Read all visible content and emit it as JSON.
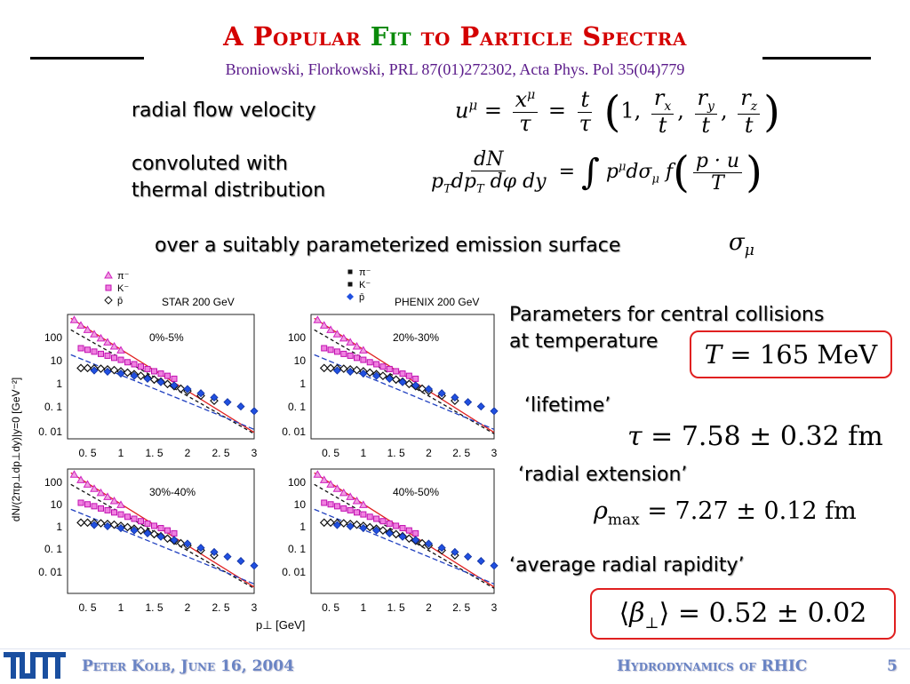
{
  "title": {
    "part1": "A Popular",
    "part2": "Fit",
    "part3": "to Particle Spectra"
  },
  "subtitle": "Broniowski, Florkowski, PRL 87(01)272302, Acta Phys. Pol 35(04)779",
  "labels": {
    "radial_flow": "radial flow velocity",
    "convoluted_line1": "convoluted with",
    "convoluted_line2": "thermal distribution",
    "emission_surface": "over a suitably parameterized emission surface",
    "parameters_line1": "Parameters for central collisions",
    "parameters_line2": "at temperature",
    "lifetime": "‘lifetime’",
    "radial_extension": "‘radial extension’",
    "avg_rapidity": "‘average radial rapidity’"
  },
  "values": {
    "temperature": "165 MeV",
    "tau": "7.58 ± 0.32 fm",
    "rho_max": "7.27 ± 0.12 fm",
    "beta": "0.52 ± 0.02"
  },
  "footer": {
    "logo": "TUM",
    "author_date": "Peter Kolb, June 16, 2004",
    "topic": "Hydrodynamics of RHIC",
    "page": "5"
  },
  "colors": {
    "title": "#d40000",
    "fit": "#0a8a0a",
    "subtitle": "#5a1a8a",
    "footer": "#6a84c4",
    "box": "#e02020"
  },
  "chart_data": {
    "type": "scatter",
    "xlabel": "p⊥ [GeV]",
    "ylabel": "dN/(2πp⊥dp⊥dy)|y=0 [GeV⁻²]",
    "xticks": [
      "0. 5",
      "1",
      "1. 5",
      "2",
      "2. 5",
      "3"
    ],
    "yticks": [
      "100",
      "10",
      "1",
      "0. 1",
      "0. 01"
    ],
    "legend_left": [
      "π⁻",
      "K⁻",
      "p̄"
    ],
    "legend_right": [
      "π⁻",
      "K⁻",
      "p̄"
    ],
    "experiments": [
      "STAR 200 GeV",
      "PHENIX 200 GeV"
    ],
    "panels": [
      {
        "label": "0%-5%"
      },
      {
        "label": "20%-30%"
      },
      {
        "label": "30%-40%"
      },
      {
        "label": "40%-50%"
      }
    ],
    "xlim": [
      0.2,
      3.0
    ],
    "ylim": [
      0.005,
      500
    ],
    "log_y": true,
    "series": [
      {
        "marker": "pink-triangle",
        "x": [
          0.3,
          0.4,
          0.5,
          0.6,
          0.7,
          0.8,
          0.9,
          1.0
        ],
        "y": [
          300,
          180,
          120,
          80,
          55,
          38,
          26,
          18
        ]
      },
      {
        "marker": "magenta-square",
        "x": [
          0.4,
          0.5,
          0.6,
          0.7,
          0.8,
          0.9,
          1.0,
          1.1,
          1.2,
          1.3,
          1.4,
          1.5,
          1.6,
          1.7,
          1.8
        ],
        "y": [
          22,
          19,
          16,
          13,
          11,
          9,
          7.5,
          6,
          5,
          4,
          3.2,
          2.6,
          2.1,
          1.7,
          1.3
        ]
      },
      {
        "marker": "black-diamond",
        "x": [
          0.4,
          0.5,
          0.6,
          0.7,
          0.8,
          0.9,
          1.0,
          1.1,
          1.2,
          1.3,
          1.4,
          1.5,
          1.6,
          1.7,
          1.8,
          1.9,
          2.0,
          2.2,
          2.4
        ],
        "y": [
          3.5,
          3.5,
          3.4,
          3.3,
          3.1,
          2.9,
          2.6,
          2.3,
          2.0,
          1.7,
          1.4,
          1.2,
          1.0,
          0.8,
          0.65,
          0.52,
          0.42,
          0.27,
          0.17
        ]
      },
      {
        "marker": "blue-diamond",
        "x": [
          0.6,
          0.8,
          1.0,
          1.2,
          1.4,
          1.6,
          1.8,
          2.0,
          2.2,
          2.4,
          2.6,
          2.8,
          3.0
        ],
        "y": [
          2.8,
          2.5,
          2.1,
          1.7,
          1.3,
          0.95,
          0.7,
          0.5,
          0.34,
          0.23,
          0.15,
          0.1,
          0.065
        ]
      }
    ]
  }
}
